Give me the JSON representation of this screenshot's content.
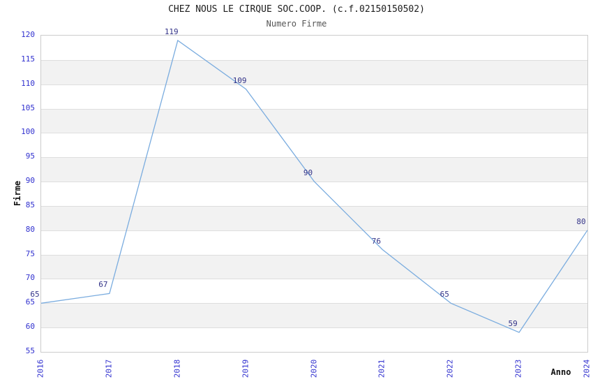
{
  "chart_data": {
    "type": "line",
    "title": "CHEZ NOUS LE CIRQUE SOC.COOP. (c.f.02150150502)",
    "subtitle": "Numero Firme",
    "xlabel": "Anno",
    "ylabel": "Firme",
    "categories": [
      "2016",
      "2017",
      "2018",
      "2019",
      "2020",
      "2021",
      "2022",
      "2023",
      "2024"
    ],
    "values": [
      65,
      67,
      119,
      109,
      90,
      76,
      65,
      59,
      80
    ],
    "ylim": [
      55,
      120
    ],
    "ytick_step": 5,
    "grid": true,
    "legend": "none",
    "band_pattern": "alternating horizontal stripes, white and light gray, 5-unit bands, top band white",
    "colors": {
      "line": "#7aacdf",
      "data_label": "#333388",
      "tick_label": "#3030cf",
      "band_alt": "#f2f2f2",
      "grid_line": "#dedede",
      "axis_border": "#cccccc",
      "title": "#1c1c1c",
      "subtitle": "#555555"
    }
  }
}
